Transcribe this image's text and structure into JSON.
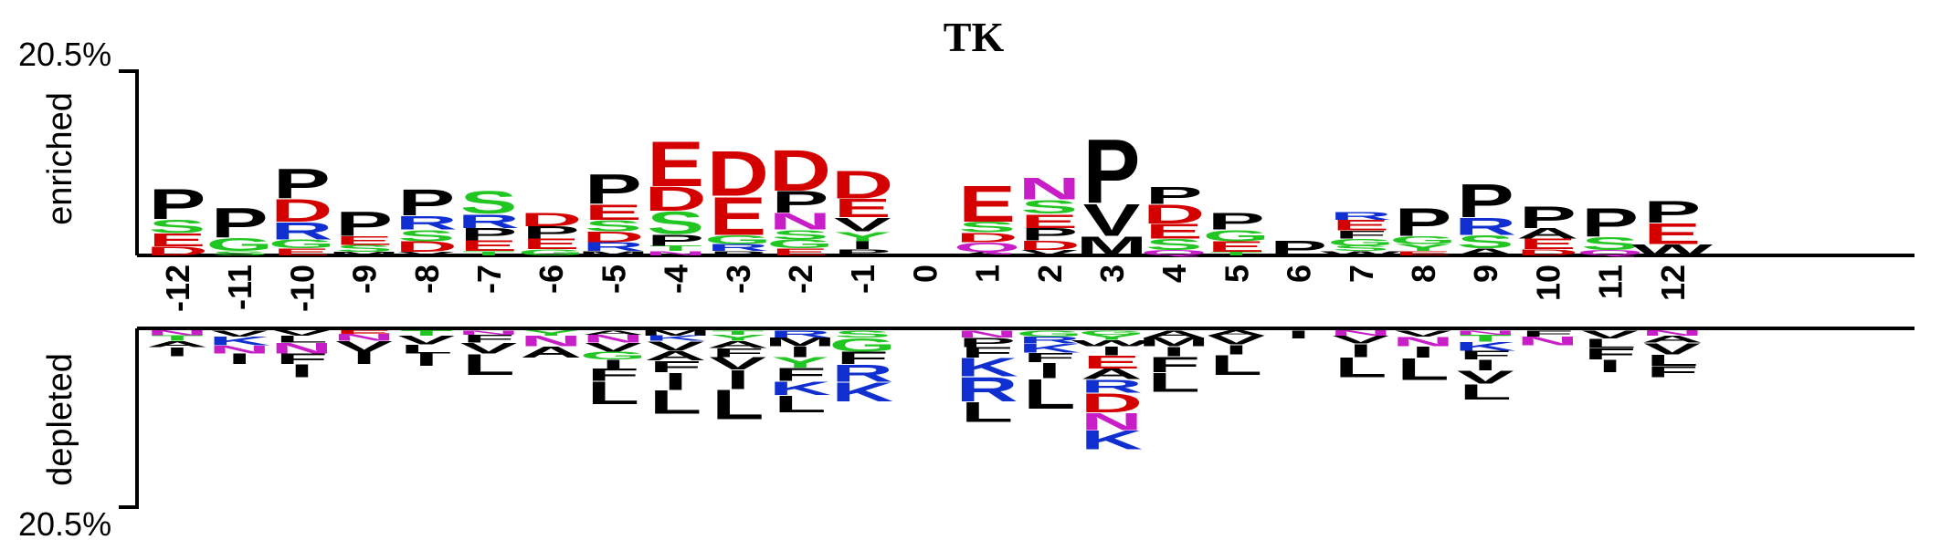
{
  "chart_data": {
    "type": "sequence-logo",
    "title": "TK",
    "scale_top_label": "20.5%",
    "scale_bottom_label": "20.5%",
    "enriched_label": "enriched",
    "depleted_label": "depleted",
    "scale_max_percent": 20.5,
    "colors": {
      "P": "#000000",
      "V": "#000000",
      "L": "#000000",
      "I": "#000000",
      "F": "#000000",
      "M": "#000000",
      "A": "#000000",
      "W": "#000000",
      "E": "#d40000",
      "D": "#d40000",
      "S": "#22c622",
      "G": "#22c622",
      "T": "#22c622",
      "Y": "#22c622",
      "R": "#0f2fd1",
      "K": "#0f2fd1",
      "H": "#0f2fd1",
      "N": "#c81ec8",
      "Q": "#c81ec8"
    },
    "positions": [
      {
        "label": "-12",
        "enriched": [
          [
            "D",
            1.0
          ],
          [
            "E",
            1.5
          ],
          [
            "S",
            1.6
          ],
          [
            "P",
            3.5
          ]
        ],
        "depleted": [
          [
            "N",
            0.6
          ],
          [
            "T",
            0.6
          ],
          [
            "A",
            0.7
          ],
          [
            "I",
            1.0
          ]
        ]
      },
      {
        "label": "-11",
        "enriched": [
          [
            "S",
            0.5
          ],
          [
            "G",
            1.5
          ],
          [
            "P",
            3.4
          ]
        ],
        "depleted": [
          [
            "V",
            0.7
          ],
          [
            "K",
            1.0
          ],
          [
            "N",
            0.9
          ],
          [
            "I",
            1.2
          ]
        ]
      },
      {
        "label": "-10",
        "enriched": [
          [
            "E",
            0.8
          ],
          [
            "G",
            1.0
          ],
          [
            "R",
            2.0
          ],
          [
            "D",
            2.6
          ],
          [
            "P",
            3.4
          ]
        ],
        "depleted": [
          [
            "V",
            0.6
          ],
          [
            "L",
            0.8
          ],
          [
            "N",
            1.2
          ],
          [
            "F",
            1.2
          ],
          [
            "I",
            1.5
          ]
        ]
      },
      {
        "label": "-9",
        "enriched": [
          [
            "M",
            0.4
          ],
          [
            "S",
            0.8
          ],
          [
            "E",
            1.0
          ],
          [
            "P",
            2.8
          ]
        ],
        "depleted": [
          [
            "E",
            0.4
          ],
          [
            "N",
            0.8
          ],
          [
            "V",
            1.2
          ],
          [
            "I",
            1.4
          ]
        ]
      },
      {
        "label": "-8",
        "enriched": [
          [
            "V",
            0.4
          ],
          [
            "D",
            1.2
          ],
          [
            "S",
            1.3
          ],
          [
            "R",
            1.6
          ],
          [
            "P",
            3.0
          ]
        ],
        "depleted": [
          [
            "T",
            0.6
          ],
          [
            "V",
            1.0
          ],
          [
            "L",
            1.0
          ],
          [
            "I",
            1.4
          ]
        ]
      },
      {
        "label": "-7",
        "enriched": [
          [
            "T",
            0.5
          ],
          [
            "E",
            1.2
          ],
          [
            "P",
            1.4
          ],
          [
            "R",
            1.6
          ],
          [
            "S",
            2.6
          ]
        ],
        "depleted": [
          [
            "N",
            0.5
          ],
          [
            "F",
            0.9
          ],
          [
            "V",
            1.2
          ],
          [
            "L",
            2.4
          ]
        ]
      },
      {
        "label": "-6",
        "enriched": [
          [
            "G",
            0.7
          ],
          [
            "E",
            1.2
          ],
          [
            "P",
            1.4
          ],
          [
            "D",
            1.6
          ]
        ],
        "depleted": [
          [
            "Y",
            0.6
          ],
          [
            "N",
            1.2
          ],
          [
            "A",
            1.3
          ]
        ]
      },
      {
        "label": "-5",
        "enriched": [
          [
            "M",
            0.5
          ],
          [
            "R",
            1.0
          ],
          [
            "D",
            1.2
          ],
          [
            "S",
            1.3
          ],
          [
            "E",
            1.8
          ],
          [
            "P",
            3.4
          ]
        ],
        "depleted": [
          [
            "A",
            0.5
          ],
          [
            "N",
            0.9
          ],
          [
            "V",
            1.0
          ],
          [
            "G",
            0.9
          ],
          [
            "I",
            1.0
          ],
          [
            "F",
            1.4
          ],
          [
            "L",
            2.6
          ]
        ]
      },
      {
        "label": "-4",
        "enriched": [
          [
            "N",
            0.5
          ],
          [
            "T",
            0.6
          ],
          [
            "P",
            1.3
          ],
          [
            "S",
            2.6
          ],
          [
            "D",
            2.8
          ],
          [
            "E",
            5.2
          ]
        ],
        "depleted": [
          [
            "M",
            0.6
          ],
          [
            "K",
            0.6
          ],
          [
            "V",
            1.1
          ],
          [
            "A",
            1.1
          ],
          [
            "F",
            1.3
          ],
          [
            "I",
            2.0
          ],
          [
            "L",
            2.7
          ]
        ]
      },
      {
        "label": "-3",
        "enriched": [
          [
            "P",
            0.5
          ],
          [
            "R",
            0.8
          ],
          [
            "G",
            1.0
          ],
          [
            "E",
            4.4
          ],
          [
            "D",
            5.2
          ]
        ],
        "depleted": [
          [
            "T",
            0.5
          ],
          [
            "Y",
            0.7
          ],
          [
            "A",
            0.8
          ],
          [
            "F",
            1.0
          ],
          [
            "V",
            1.4
          ],
          [
            "I",
            2.2
          ],
          [
            "L",
            3.4
          ]
        ]
      },
      {
        "label": "-2",
        "enriched": [
          [
            "E",
            0.8
          ],
          [
            "G",
            1.0
          ],
          [
            "S",
            1.1
          ],
          [
            "N",
            1.9
          ],
          [
            "P",
            2.5
          ],
          [
            "D",
            4.7
          ]
        ],
        "depleted": [
          [
            "R",
            0.8
          ],
          [
            "M",
            1.0
          ],
          [
            "I",
            1.2
          ],
          [
            "Y",
            1.2
          ],
          [
            "F",
            1.5
          ],
          [
            "K",
            1.6
          ],
          [
            "L",
            1.9
          ]
        ]
      },
      {
        "label": "-1",
        "enriched": [
          [
            "P",
            0.7
          ],
          [
            "I",
            0.9
          ],
          [
            "Y",
            1.1
          ],
          [
            "V",
            1.6
          ],
          [
            "E",
            2.1
          ],
          [
            "D",
            3.2
          ]
        ],
        "depleted": [
          [
            "S",
            0.8
          ],
          [
            "G",
            1.6
          ],
          [
            "F",
            1.4
          ],
          [
            "R",
            2.0
          ],
          [
            "K",
            2.2
          ]
        ]
      },
      {
        "label": "0",
        "enriched": [],
        "depleted": []
      },
      {
        "label": "1",
        "enriched": [
          [
            "A",
            0.4
          ],
          [
            "Q",
            1.1
          ],
          [
            "D",
            1.1
          ],
          [
            "S",
            1.2
          ],
          [
            "E",
            4.2
          ]
        ],
        "depleted": [
          [
            "N",
            0.8
          ],
          [
            "P",
            1.1
          ],
          [
            "F",
            1.2
          ],
          [
            "K",
            2.1
          ],
          [
            "R",
            2.8
          ],
          [
            "L",
            2.3
          ]
        ]
      },
      {
        "label": "2",
        "enriched": [
          [
            "V",
            0.6
          ],
          [
            "D",
            1.1
          ],
          [
            "P",
            1.4
          ],
          [
            "E",
            1.6
          ],
          [
            "S",
            1.6
          ],
          [
            "N",
            2.5
          ]
        ],
        "depleted": [
          [
            "G",
            0.7
          ],
          [
            "R",
            0.8
          ],
          [
            "K",
            1.0
          ],
          [
            "F",
            1.1
          ],
          [
            "I",
            1.8
          ],
          [
            "L",
            3.4
          ]
        ]
      },
      {
        "label": "3",
        "enriched": [
          [
            "M",
            2.2
          ],
          [
            "V",
            3.7
          ],
          [
            "P",
            7.4
          ]
        ],
        "depleted": [
          [
            "G",
            0.5
          ],
          [
            "Y",
            0.6
          ],
          [
            "W",
            0.7
          ],
          [
            "I",
            1.0
          ],
          [
            "E",
            1.5
          ],
          [
            "A",
            1.2
          ],
          [
            "R",
            1.5
          ],
          [
            "D",
            2.2
          ],
          [
            "N",
            2.0
          ],
          [
            "K",
            2.2
          ]
        ]
      },
      {
        "label": "4",
        "enriched": [
          [
            "Q",
            0.6
          ],
          [
            "S",
            1.3
          ],
          [
            "E",
            1.7
          ],
          [
            "D",
            2.2
          ],
          [
            "P",
            2.0
          ]
        ],
        "depleted": [
          [
            "A",
            0.8
          ],
          [
            "M",
            1.0
          ],
          [
            "I",
            1.1
          ],
          [
            "F",
            1.8
          ],
          [
            "L",
            2.2
          ]
        ]
      },
      {
        "label": "5",
        "enriched": [
          [
            "T",
            0.4
          ],
          [
            "E",
            1.2
          ],
          [
            "G",
            1.3
          ],
          [
            "P",
            1.9
          ]
        ],
        "depleted": [
          [
            "A",
            0.6
          ],
          [
            "V",
            1.0
          ],
          [
            "I",
            1.1
          ],
          [
            "L",
            2.3
          ]
        ]
      },
      {
        "label": "6",
        "enriched": [
          [
            "P",
            1.7
          ]
        ],
        "depleted": [
          [
            "I",
            0.9
          ]
        ]
      },
      {
        "label": "7",
        "enriched": [
          [
            "W",
            0.5
          ],
          [
            "S",
            0.6
          ],
          [
            "G",
            0.8
          ],
          [
            "F",
            0.9
          ],
          [
            "E",
            1.2
          ],
          [
            "R",
            0.9
          ]
        ],
        "depleted": [
          [
            "N",
            0.6
          ],
          [
            "V",
            0.9
          ],
          [
            "I",
            1.5
          ],
          [
            "L",
            2.3
          ]
        ]
      },
      {
        "label": "8",
        "enriched": [
          [
            "E",
            0.5
          ],
          [
            "Y",
            0.8
          ],
          [
            "G",
            0.9
          ],
          [
            "P",
            3.2
          ]
        ],
        "depleted": [
          [
            "V",
            0.7
          ],
          [
            "N",
            1.1
          ],
          [
            "I",
            1.3
          ],
          [
            "L",
            2.5
          ]
        ]
      },
      {
        "label": "9",
        "enriched": [
          [
            "A",
            0.8
          ],
          [
            "S",
            1.5
          ],
          [
            "R",
            2.0
          ],
          [
            "P",
            3.8
          ]
        ],
        "depleted": [
          [
            "N",
            0.5
          ],
          [
            "T",
            0.8
          ],
          [
            "K",
            1.0
          ],
          [
            "F",
            1.0
          ],
          [
            "I",
            1.2
          ],
          [
            "V",
            1.5
          ],
          [
            "L",
            1.8
          ]
        ]
      },
      {
        "label": "10",
        "enriched": [
          [
            "D",
            0.7
          ],
          [
            "E",
            1.2
          ],
          [
            "A",
            1.2
          ],
          [
            "P",
            2.5
          ]
        ],
        "depleted": [
          [
            "F",
            0.7
          ],
          [
            "N",
            1.0
          ]
        ]
      },
      {
        "label": "11",
        "enriched": [
          [
            "Q",
            0.6
          ],
          [
            "S",
            1.5
          ],
          [
            "P",
            3.3
          ]
        ],
        "depleted": [
          [
            "V",
            0.9
          ],
          [
            "L",
            1.1
          ],
          [
            "F",
            1.3
          ],
          [
            "I",
            1.4
          ]
        ]
      },
      {
        "label": "12",
        "enriched": [
          [
            "W",
            1.3
          ],
          [
            "E",
            2.4
          ],
          [
            "P",
            2.5
          ]
        ],
        "depleted": [
          [
            "N",
            0.6
          ],
          [
            "A",
            0.8
          ],
          [
            "V",
            1.3
          ],
          [
            "L",
            1.3
          ],
          [
            "F",
            1.3
          ]
        ]
      }
    ]
  }
}
